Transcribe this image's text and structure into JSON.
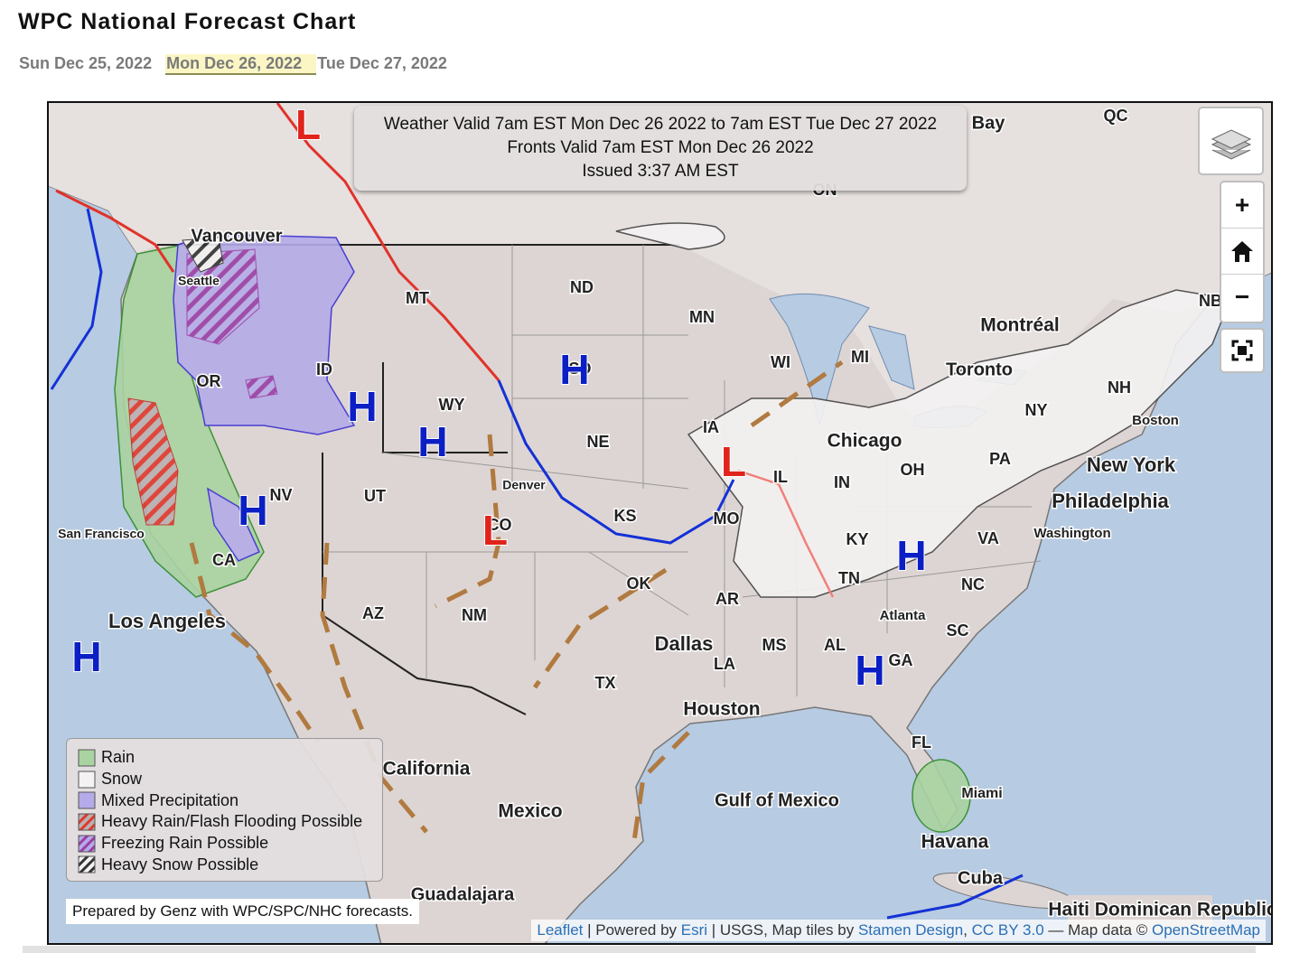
{
  "header": {
    "title": "WPC National Forecast Chart",
    "tabs": [
      "Sun Dec 25, 2022",
      "Mon Dec 26, 2022",
      "Tue Dec 27, 2022"
    ],
    "active_tab": 1
  },
  "map": {
    "info": [
      "Weather Valid 7am EST Mon Dec 26 2022 to 7am EST Tue Dec 27 2022",
      "Fronts Valid 7am EST Mon Dec 26 2022",
      "Issued 3:37 AM EST"
    ],
    "controls": [
      "+",
      "−"
    ],
    "legend": [
      {
        "label": "Rain",
        "color": "#a9d3a0",
        "hatch": null
      },
      {
        "label": "Snow",
        "color": "#f4f2f2",
        "hatch": null
      },
      {
        "label": "Mixed Precipitation",
        "color": "#b4abe8",
        "hatch": null
      },
      {
        "label": "Heavy Rain/Flash Flooding Possible",
        "color": "#b9b1b1",
        "hatch": "#e0382c"
      },
      {
        "label": "Freezing Rain Possible",
        "color": "#b4abe8",
        "hatch": "#9a3fa6"
      },
      {
        "label": "Heavy Snow Possible",
        "color": "#f4f2f2",
        "hatch": "#333333"
      }
    ],
    "credit": "Prepared by Genz with WPC/SPC/NHC forecasts.",
    "attribution": [
      {
        "text": "Leaflet",
        "link": true
      },
      {
        "text": " | Powered by ",
        "link": false
      },
      {
        "text": "Esri",
        "link": true
      },
      {
        "text": " | USGS, Map tiles by ",
        "link": false
      },
      {
        "text": "Stamen Design",
        "link": true
      },
      {
        "text": ", ",
        "link": false
      },
      {
        "text": "CC BY 3.0",
        "link": true
      },
      {
        "text": " — Map data © ",
        "link": false
      },
      {
        "text": "OpenStreetMap",
        "link": true
      }
    ],
    "places": [
      "Vancouver",
      "Seattle",
      "MT",
      "ND",
      "MN",
      "WI",
      "MI",
      "Montréal",
      "Toronto",
      "NY",
      "NH",
      "Boston",
      "New York",
      "PA",
      "Philadelphia",
      "Washington",
      "VA",
      "NC",
      "SC",
      "GA",
      "Atlanta",
      "FL",
      "Miami",
      "Havana",
      "Cuba",
      "Haiti Dominican Republic",
      "OR",
      "ID",
      "WY",
      "SD",
      "NE",
      "IA",
      "IL",
      "IN",
      "OH",
      "KY",
      "TN",
      "Chicago",
      "NV",
      "UT",
      "CO",
      "KS",
      "MO",
      "Denver",
      "San Francisco",
      "CA",
      "AZ",
      "NM",
      "OK",
      "AR",
      "Los Angeles",
      "Dallas",
      "MS",
      "AL",
      "LA",
      "TX",
      "Houston",
      "California",
      "Mexico",
      "Gulf of Mexico",
      "Guadalajara",
      "Bay",
      "QC",
      "ON",
      "NB"
    ],
    "pressure": [
      {
        "symbol": "H",
        "color": "#0b1fc4"
      },
      {
        "symbol": "H",
        "color": "#0b1fc4"
      },
      {
        "symbol": "H",
        "color": "#0b1fc4"
      },
      {
        "symbol": "H",
        "color": "#0b1fc4"
      },
      {
        "symbol": "H",
        "color": "#0b1fc4"
      },
      {
        "symbol": "H",
        "color": "#0b1fc4"
      },
      {
        "symbol": "H",
        "color": "#0b1fc4"
      },
      {
        "symbol": "L",
        "color": "#e0231b"
      },
      {
        "symbol": "L",
        "color": "#e0231b"
      },
      {
        "symbol": "L",
        "color": "#e0231b"
      }
    ]
  }
}
